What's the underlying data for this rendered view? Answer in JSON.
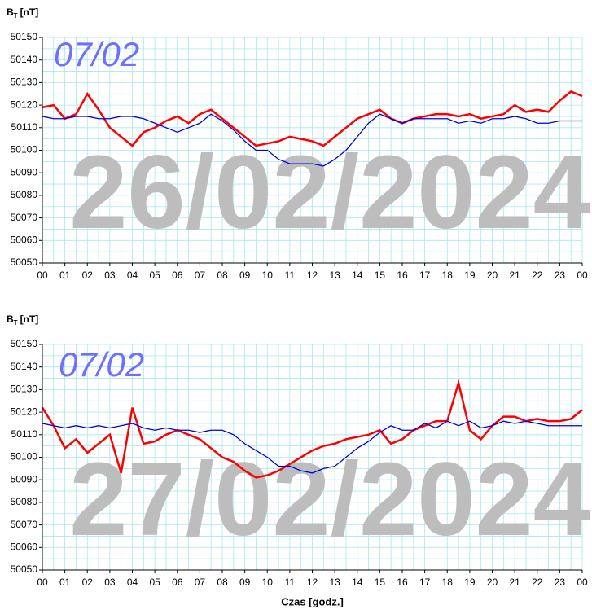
{
  "chart_data": [
    {
      "type": "line",
      "y_label": "B",
      "y_label_sub": "T",
      "y_label_unit": "[nT]",
      "annotation": "07/02",
      "watermark": "26/02/2024",
      "xlim": [
        0,
        24
      ],
      "ylim": [
        50050,
        50150
      ],
      "grid": true,
      "yticks": [
        50050,
        50060,
        50070,
        50080,
        50090,
        50100,
        50110,
        50120,
        50130,
        50140,
        50150
      ],
      "xticks": [
        {
          "value": 0,
          "label": "00"
        },
        {
          "value": 1,
          "label": "01"
        },
        {
          "value": 2,
          "label": "02"
        },
        {
          "value": 3,
          "label": "03"
        },
        {
          "value": 4,
          "label": "04"
        },
        {
          "value": 5,
          "label": "05"
        },
        {
          "value": 6,
          "label": "06"
        },
        {
          "value": 7,
          "label": "07"
        },
        {
          "value": 8,
          "label": "08"
        },
        {
          "value": 9,
          "label": "09"
        },
        {
          "value": 10,
          "label": "10"
        },
        {
          "value": 11,
          "label": "11"
        },
        {
          "value": 12,
          "label": "12"
        },
        {
          "value": 13,
          "label": "13"
        },
        {
          "value": 14,
          "label": "14"
        },
        {
          "value": 15,
          "label": "15"
        },
        {
          "value": 16,
          "label": "16"
        },
        {
          "value": 17,
          "label": "17"
        },
        {
          "value": 18,
          "label": "18"
        },
        {
          "value": 19,
          "label": "19"
        },
        {
          "value": 20,
          "label": "20"
        },
        {
          "value": 21,
          "label": "21"
        },
        {
          "value": 22,
          "label": "22"
        },
        {
          "value": 23,
          "label": "23"
        },
        {
          "value": 24,
          "label": "00"
        }
      ],
      "x": [
        0,
        0.5,
        1,
        1.5,
        2,
        2.5,
        3,
        3.5,
        4,
        4.5,
        5,
        5.5,
        6,
        6.5,
        7,
        7.5,
        8,
        8.5,
        9,
        9.5,
        10,
        10.5,
        11,
        11.5,
        12,
        12.5,
        13,
        13.5,
        14,
        14.5,
        15,
        15.5,
        16,
        16.5,
        17,
        17.5,
        18,
        18.5,
        19,
        19.5,
        20,
        20.5,
        21,
        21.5,
        22,
        22.5,
        23,
        23.5,
        24
      ],
      "series": [
        {
          "color": "#ff0000",
          "values": [
            50119,
            50120,
            50114,
            50116,
            50125,
            50118,
            50110,
            50106,
            50102,
            50108,
            50110,
            50113,
            50115,
            50112,
            50116,
            50118,
            50114,
            50110,
            50106,
            50102,
            50103,
            50104,
            50106,
            50105,
            50104,
            50102,
            50106,
            50110,
            50114,
            50116,
            50118,
            50114,
            50112,
            50114,
            50115,
            50116,
            50116,
            50115,
            50116,
            50114,
            50115,
            50116,
            50120,
            50117,
            50118,
            50117,
            50122,
            50126,
            50124
          ]
        },
        {
          "color": "#0000e0",
          "values": [
            50115,
            50114,
            50114,
            50115,
            50115,
            50114,
            50114,
            50115,
            50115,
            50114,
            50112,
            50110,
            50108,
            50110,
            50112,
            50116,
            50113,
            50109,
            50104,
            50100,
            50100,
            50096,
            50094,
            50094,
            50094,
            50093,
            50096,
            50100,
            50106,
            50112,
            50116,
            50114,
            50112,
            50114,
            50114,
            50114,
            50114,
            50112,
            50113,
            50112,
            50114,
            50114,
            50115,
            50114,
            50112,
            50112,
            50113,
            50113,
            50113
          ]
        }
      ]
    },
    {
      "type": "line",
      "y_label": "B",
      "y_label_sub": "T",
      "y_label_unit": "[nT]",
      "annotation": "07/02",
      "watermark": "27/02/2024",
      "xlabel": "Czas [godz.]",
      "xlim": [
        0,
        24
      ],
      "ylim": [
        50050,
        50150
      ],
      "grid": true,
      "yticks": [
        50050,
        50060,
        50070,
        50080,
        50090,
        50100,
        50110,
        50120,
        50130,
        50140,
        50150
      ],
      "xticks": [
        {
          "value": 0,
          "label": "00"
        },
        {
          "value": 1,
          "label": "01"
        },
        {
          "value": 2,
          "label": "02"
        },
        {
          "value": 3,
          "label": "03"
        },
        {
          "value": 4,
          "label": "04"
        },
        {
          "value": 5,
          "label": "05"
        },
        {
          "value": 6,
          "label": "06"
        },
        {
          "value": 7,
          "label": "07"
        },
        {
          "value": 8,
          "label": "08"
        },
        {
          "value": 9,
          "label": "09"
        },
        {
          "value": 10,
          "label": "10"
        },
        {
          "value": 11,
          "label": "11"
        },
        {
          "value": 12,
          "label": "12"
        },
        {
          "value": 13,
          "label": "13"
        },
        {
          "value": 14,
          "label": "14"
        },
        {
          "value": 15,
          "label": "15"
        },
        {
          "value": 16,
          "label": "16"
        },
        {
          "value": 17,
          "label": "17"
        },
        {
          "value": 18,
          "label": "18"
        },
        {
          "value": 19,
          "label": "19"
        },
        {
          "value": 20,
          "label": "20"
        },
        {
          "value": 21,
          "label": "21"
        },
        {
          "value": 22,
          "label": "22"
        },
        {
          "value": 23,
          "label": "23"
        },
        {
          "value": 24,
          "label": "00"
        }
      ],
      "x": [
        0,
        0.5,
        1,
        1.5,
        2,
        2.5,
        3,
        3.5,
        4,
        4.5,
        5,
        5.5,
        6,
        6.5,
        7,
        7.5,
        8,
        8.5,
        9,
        9.5,
        10,
        10.5,
        11,
        11.5,
        12,
        12.5,
        13,
        13.5,
        14,
        14.5,
        15,
        15.5,
        16,
        16.5,
        17,
        17.5,
        18,
        18.5,
        19,
        19.5,
        20,
        20.5,
        21,
        21.5,
        22,
        22.5,
        23,
        23.5,
        24
      ],
      "series": [
        {
          "color": "#ff0000",
          "values": [
            50122,
            50114,
            50104,
            50108,
            50102,
            50106,
            50110,
            50093,
            50122,
            50106,
            50107,
            50110,
            50112,
            50110,
            50108,
            50104,
            50100,
            50098,
            50094,
            50091,
            50092,
            50094,
            50097,
            50100,
            50103,
            50105,
            50106,
            50108,
            50109,
            50110,
            50112,
            50106,
            50108,
            50112,
            50114,
            50116,
            50116,
            50133,
            50112,
            50108,
            50114,
            50118,
            50118,
            50116,
            50117,
            50116,
            50116,
            50117,
            50121
          ]
        },
        {
          "color": "#0000e0",
          "values": [
            50115,
            50114,
            50113,
            50114,
            50113,
            50114,
            50113,
            50114,
            50115,
            50113,
            50112,
            50113,
            50112,
            50112,
            50111,
            50112,
            50112,
            50110,
            50106,
            50103,
            50100,
            50096,
            50096,
            50094,
            50093,
            50095,
            50096,
            50100,
            50104,
            50107,
            50111,
            50114,
            50112,
            50112,
            50115,
            50113,
            50116,
            50114,
            50116,
            50113,
            50114,
            50116,
            50115,
            50116,
            50115,
            50114,
            50114,
            50114,
            50114
          ]
        }
      ]
    }
  ]
}
